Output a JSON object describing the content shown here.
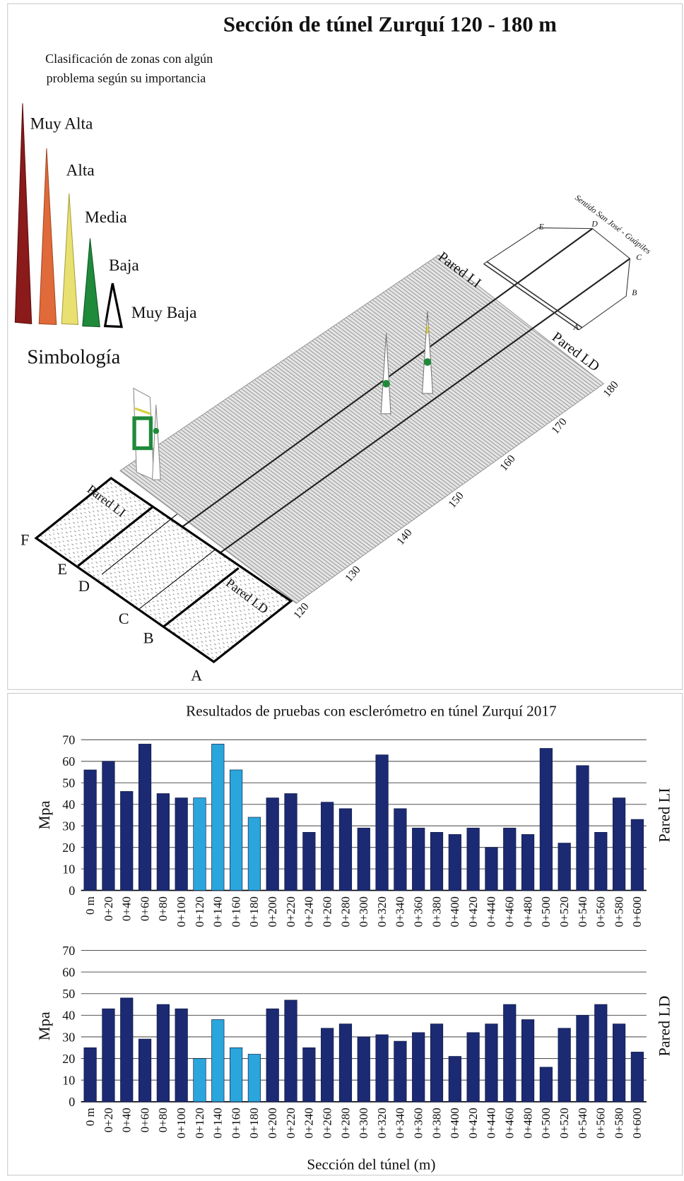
{
  "diagram": {
    "title": "Sección de túnel Zurquí 120 - 180 m",
    "legend_title": [
      "Clasificación de zonas con algún",
      "problema según su importancia"
    ],
    "legend_items": [
      "Muy Alta",
      "Alta",
      "Media",
      "Baja",
      "Muy Baja"
    ],
    "legend_caption": "Simbología",
    "wall_labels": [
      "Pared LI",
      "Pared LD"
    ],
    "grid_letters": [
      "A",
      "B",
      "C",
      "D",
      "E",
      "F"
    ],
    "end_letters": [
      "E",
      "D",
      "C",
      "B",
      "A"
    ],
    "direction": "Sentido San José - Guápiles",
    "station_labels": [
      120,
      130,
      140,
      150,
      160,
      170,
      180
    ]
  },
  "chart_data": [
    {
      "type": "bar",
      "title": "Resultados de pruebas con esclerómetro en túnel Zurquí 2017",
      "ylabel": "Mpa",
      "side_label": "Pared LI",
      "categories": [
        "0 m",
        "0+20",
        "0+40",
        "0+60",
        "0+80",
        "0+100",
        "0+120",
        "0+140",
        "0+160",
        "0+180",
        "0+200",
        "0+220",
        "0+240",
        "0+260",
        "0+280",
        "0+300",
        "0+320",
        "0+340",
        "0+360",
        "0+380",
        "0+400",
        "0+420",
        "0+440",
        "0+460",
        "0+480",
        "0+500",
        "0+520",
        "0+540",
        "0+560",
        "0+580",
        "0+600"
      ],
      "values": [
        56,
        60,
        46,
        68,
        45,
        43,
        43,
        68,
        56,
        34,
        43,
        45,
        27,
        41,
        38,
        29,
        63,
        38,
        29,
        27,
        26,
        29,
        20,
        29,
        26,
        66,
        22,
        58,
        27,
        43,
        33
      ],
      "colors": [
        "#1b2a72",
        "#1b2a72",
        "#1b2a72",
        "#1b2a72",
        "#1b2a72",
        "#1b2a72",
        "#2aa6dc",
        "#2aa6dc",
        "#2aa6dc",
        "#2aa6dc",
        "#1b2a72",
        "#1b2a72",
        "#1b2a72",
        "#1b2a72",
        "#1b2a72",
        "#1b2a72",
        "#1b2a72",
        "#1b2a72",
        "#1b2a72",
        "#1b2a72",
        "#1b2a72",
        "#1b2a72",
        "#1b2a72",
        "#1b2a72",
        "#1b2a72",
        "#1b2a72",
        "#1b2a72",
        "#1b2a72",
        "#1b2a72",
        "#1b2a72",
        "#1b2a72"
      ],
      "ylim": [
        0,
        70
      ],
      "yticks": [
        0,
        10,
        20,
        30,
        40,
        50,
        60,
        70
      ],
      "grid": true
    },
    {
      "type": "bar",
      "xlabel": "Sección del túnel (m)",
      "ylabel": "Mpa",
      "side_label": "Pared LD",
      "categories": [
        "0 m",
        "0+20",
        "0+40",
        "0+60",
        "0+80",
        "0+100",
        "0+120",
        "0+140",
        "0+160",
        "0+180",
        "0+200",
        "0+220",
        "0+240",
        "0+260",
        "0+280",
        "0+300",
        "0+320",
        "0+340",
        "0+360",
        "0+380",
        "0+400",
        "0+420",
        "0+440",
        "0+460",
        "0+480",
        "0+500",
        "0+520",
        "0+540",
        "0+560",
        "0+580",
        "0+600"
      ],
      "values": [
        25,
        43,
        48,
        29,
        45,
        43,
        20,
        38,
        25,
        22,
        43,
        47,
        25,
        34,
        36,
        30,
        31,
        28,
        32,
        36,
        21,
        32,
        36,
        45,
        38,
        16,
        34,
        40,
        45,
        36,
        23
      ],
      "colors": [
        "#1b2a72",
        "#1b2a72",
        "#1b2a72",
        "#1b2a72",
        "#1b2a72",
        "#1b2a72",
        "#2aa6dc",
        "#2aa6dc",
        "#2aa6dc",
        "#2aa6dc",
        "#1b2a72",
        "#1b2a72",
        "#1b2a72",
        "#1b2a72",
        "#1b2a72",
        "#1b2a72",
        "#1b2a72",
        "#1b2a72",
        "#1b2a72",
        "#1b2a72",
        "#1b2a72",
        "#1b2a72",
        "#1b2a72",
        "#1b2a72",
        "#1b2a72",
        "#1b2a72",
        "#1b2a72",
        "#1b2a72",
        "#1b2a72",
        "#1b2a72",
        "#1b2a72"
      ],
      "ylim": [
        0,
        70
      ],
      "yticks": [
        0,
        10,
        20,
        30,
        40,
        50,
        60,
        70
      ],
      "grid": true
    }
  ]
}
